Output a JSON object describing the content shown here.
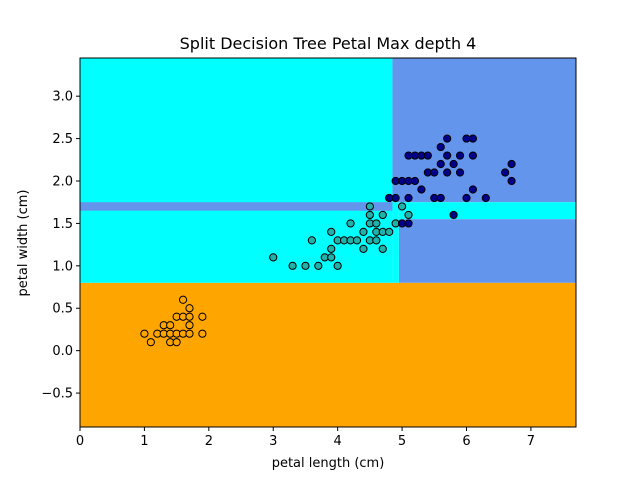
{
  "chart_data": {
    "type": "scatter",
    "title": "Split Decision Tree Petal Max depth 4",
    "xlabel": "petal length (cm)",
    "ylabel": "petal width (cm)",
    "xlim": [
      0,
      7.7
    ],
    "ylim": [
      -0.9,
      3.45
    ],
    "x_ticks": [
      0,
      1,
      2,
      3,
      4,
      5,
      6,
      7
    ],
    "y_ticks": [
      -0.5,
      0.0,
      0.5,
      1.0,
      1.5,
      2.0,
      2.5,
      3.0
    ],
    "grid": false,
    "colors": {
      "region_class0": "#ffa500",
      "region_class1": "#00ffff",
      "region_class2": "#6495ed",
      "point_class0": "#ffa500",
      "point_class1": "#20b2aa",
      "point_class2": "#00008b",
      "point_edge": "#000000"
    },
    "decision_regions": [
      {
        "class": 0,
        "x": [
          0,
          7.7
        ],
        "y": [
          -0.9,
          0.8
        ]
      },
      {
        "class": 1,
        "x": [
          0,
          4.85
        ],
        "y": [
          0.8,
          3.45
        ]
      },
      {
        "class": 2,
        "x": [
          4.85,
          7.7
        ],
        "y": [
          1.75,
          3.45
        ]
      },
      {
        "class": 2,
        "x": [
          0,
          4.85
        ],
        "y": [
          1.65,
          1.75
        ]
      },
      {
        "class": 1,
        "x": [
          4.95,
          7.7
        ],
        "y": [
          1.55,
          1.75
        ]
      },
      {
        "class": 2,
        "x": [
          4.95,
          7.7
        ],
        "y": [
          0.8,
          1.55
        ]
      },
      {
        "class": 1,
        "x": [
          4.85,
          4.95
        ],
        "y": [
          0.8,
          1.75
        ]
      }
    ],
    "series": [
      {
        "class": 0,
        "points": [
          [
            1.0,
            0.2
          ],
          [
            1.1,
            0.1
          ],
          [
            1.2,
            0.2
          ],
          [
            1.3,
            0.2
          ],
          [
            1.3,
            0.3
          ],
          [
            1.4,
            0.1
          ],
          [
            1.4,
            0.2
          ],
          [
            1.4,
            0.3
          ],
          [
            1.5,
            0.1
          ],
          [
            1.5,
            0.2
          ],
          [
            1.5,
            0.4
          ],
          [
            1.6,
            0.2
          ],
          [
            1.6,
            0.4
          ],
          [
            1.6,
            0.6
          ],
          [
            1.7,
            0.2
          ],
          [
            1.7,
            0.3
          ],
          [
            1.7,
            0.4
          ],
          [
            1.7,
            0.5
          ],
          [
            1.9,
            0.2
          ],
          [
            1.9,
            0.4
          ]
        ]
      },
      {
        "class": 1,
        "points": [
          [
            3.0,
            1.1
          ],
          [
            3.3,
            1.0
          ],
          [
            3.5,
            1.0
          ],
          [
            3.6,
            1.3
          ],
          [
            3.7,
            1.0
          ],
          [
            3.8,
            1.1
          ],
          [
            3.9,
            1.1
          ],
          [
            3.9,
            1.2
          ],
          [
            3.9,
            1.4
          ],
          [
            4.0,
            1.0
          ],
          [
            4.0,
            1.3
          ],
          [
            4.1,
            1.3
          ],
          [
            4.2,
            1.3
          ],
          [
            4.2,
            1.5
          ],
          [
            4.3,
            1.3
          ],
          [
            4.4,
            1.2
          ],
          [
            4.4,
            1.4
          ],
          [
            4.5,
            1.3
          ],
          [
            4.5,
            1.5
          ],
          [
            4.5,
            1.6
          ],
          [
            4.5,
            1.7
          ],
          [
            4.6,
            1.3
          ],
          [
            4.6,
            1.4
          ],
          [
            4.6,
            1.5
          ],
          [
            4.7,
            1.2
          ],
          [
            4.7,
            1.4
          ],
          [
            4.7,
            1.6
          ],
          [
            4.8,
            1.4
          ],
          [
            4.8,
            1.8
          ],
          [
            4.9,
            1.5
          ],
          [
            5.0,
            1.7
          ],
          [
            5.1,
            1.6
          ]
        ]
      },
      {
        "class": 2,
        "points": [
          [
            4.8,
            1.8
          ],
          [
            4.9,
            1.8
          ],
          [
            4.9,
            2.0
          ],
          [
            5.0,
            1.5
          ],
          [
            5.0,
            2.0
          ],
          [
            5.1,
            1.5
          ],
          [
            5.1,
            1.8
          ],
          [
            5.1,
            2.0
          ],
          [
            5.1,
            2.3
          ],
          [
            5.2,
            2.0
          ],
          [
            5.2,
            2.3
          ],
          [
            5.3,
            1.9
          ],
          [
            5.3,
            2.3
          ],
          [
            5.4,
            2.1
          ],
          [
            5.4,
            2.3
          ],
          [
            5.5,
            1.8
          ],
          [
            5.5,
            2.1
          ],
          [
            5.6,
            1.8
          ],
          [
            5.6,
            2.2
          ],
          [
            5.6,
            2.4
          ],
          [
            5.7,
            2.1
          ],
          [
            5.7,
            2.3
          ],
          [
            5.7,
            2.5
          ],
          [
            5.8,
            1.6
          ],
          [
            5.8,
            2.2
          ],
          [
            5.9,
            2.1
          ],
          [
            5.9,
            2.3
          ],
          [
            6.0,
            1.8
          ],
          [
            6.0,
            2.5
          ],
          [
            6.1,
            1.9
          ],
          [
            6.1,
            2.3
          ],
          [
            6.1,
            2.5
          ],
          [
            6.3,
            1.8
          ],
          [
            6.6,
            2.1
          ],
          [
            6.7,
            2.0
          ],
          [
            6.7,
            2.2
          ]
        ]
      }
    ]
  }
}
